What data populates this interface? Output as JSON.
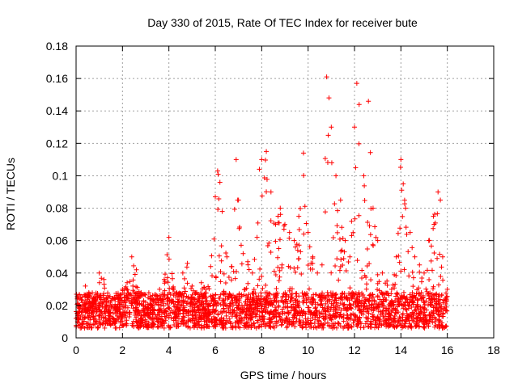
{
  "chart_data": {
    "type": "scatter",
    "title": "Day 330 of 2015, Rate Of TEC Index for receiver bute",
    "xlabel": "GPS time / hours",
    "ylabel": "ROTI / TECUs",
    "xlim": [
      0,
      18
    ],
    "ylim": [
      0,
      0.18
    ],
    "x_ticks": [
      "0",
      "2",
      "4",
      "6",
      "8",
      "10",
      "12",
      "14",
      "16",
      "18"
    ],
    "y_ticks": [
      "0",
      "0.02",
      "0.04",
      "0.06",
      "0.08",
      "0.1",
      "0.12",
      "0.14",
      "0.16",
      "0.18"
    ],
    "grid": true,
    "marker": "+",
    "color": "#ff0000",
    "data_extent_hours": [
      0,
      16
    ],
    "series": [
      {
        "points": [
          [
            0.0,
            0.012
          ],
          [
            0.2,
            0.025
          ],
          [
            0.4,
            0.032
          ],
          [
            0.6,
            0.02
          ],
          [
            0.8,
            0.024
          ],
          [
            1.0,
            0.04
          ],
          [
            1.2,
            0.036
          ],
          [
            1.4,
            0.022
          ],
          [
            1.6,
            0.018
          ],
          [
            1.8,
            0.026
          ],
          [
            2.0,
            0.03
          ],
          [
            2.2,
            0.034
          ],
          [
            2.4,
            0.05
          ],
          [
            2.6,
            0.042
          ],
          [
            2.8,
            0.028
          ],
          [
            3.0,
            0.022
          ],
          [
            3.2,
            0.02
          ],
          [
            3.4,
            0.024
          ],
          [
            3.6,
            0.03
          ],
          [
            3.8,
            0.036
          ],
          [
            4.0,
            0.062
          ],
          [
            4.2,
            0.03
          ],
          [
            4.4,
            0.026
          ],
          [
            4.6,
            0.04
          ],
          [
            4.8,
            0.046
          ],
          [
            5.0,
            0.032
          ],
          [
            5.2,
            0.028
          ],
          [
            5.4,
            0.034
          ],
          [
            5.6,
            0.03
          ],
          [
            5.8,
            0.044
          ],
          [
            6.0,
            0.087
          ],
          [
            6.1,
            0.103
          ],
          [
            6.2,
            0.096
          ],
          [
            6.3,
            0.078
          ],
          [
            6.5,
            0.05
          ],
          [
            6.7,
            0.044
          ],
          [
            6.9,
            0.11
          ],
          [
            7.0,
            0.085
          ],
          [
            7.2,
            0.052
          ],
          [
            7.4,
            0.047
          ],
          [
            7.6,
            0.04
          ],
          [
            7.8,
            0.062
          ],
          [
            7.9,
            0.104
          ],
          [
            8.0,
            0.11
          ],
          [
            8.2,
            0.115
          ],
          [
            8.4,
            0.09
          ],
          [
            8.6,
            0.07
          ],
          [
            8.8,
            0.08
          ],
          [
            9.0,
            0.07
          ],
          [
            9.2,
            0.065
          ],
          [
            9.4,
            0.06
          ],
          [
            9.6,
            0.075
          ],
          [
            9.8,
            0.114
          ],
          [
            10.0,
            0.065
          ],
          [
            10.2,
            0.05
          ],
          [
            10.4,
            0.04
          ],
          [
            10.6,
            0.045
          ],
          [
            10.8,
            0.161
          ],
          [
            10.9,
            0.148
          ],
          [
            11.0,
            0.13
          ],
          [
            11.2,
            0.1
          ],
          [
            11.4,
            0.085
          ],
          [
            11.6,
            0.06
          ],
          [
            11.8,
            0.05
          ],
          [
            12.0,
            0.13
          ],
          [
            12.1,
            0.157
          ],
          [
            12.2,
            0.144
          ],
          [
            12.4,
            0.1
          ],
          [
            12.6,
            0.146
          ],
          [
            12.8,
            0.08
          ],
          [
            13.0,
            0.06
          ],
          [
            13.2,
            0.04
          ],
          [
            13.4,
            0.035
          ],
          [
            13.6,
            0.03
          ],
          [
            13.8,
            0.05
          ],
          [
            14.0,
            0.11
          ],
          [
            14.1,
            0.095
          ],
          [
            14.2,
            0.08
          ],
          [
            14.4,
            0.065
          ],
          [
            14.6,
            0.05
          ],
          [
            14.8,
            0.045
          ],
          [
            15.0,
            0.04
          ],
          [
            15.2,
            0.06
          ],
          [
            15.4,
            0.075
          ],
          [
            15.6,
            0.09
          ],
          [
            15.7,
            0.085
          ],
          [
            15.8,
            0.05
          ],
          [
            16.0,
            0.03
          ]
        ]
      }
    ]
  }
}
